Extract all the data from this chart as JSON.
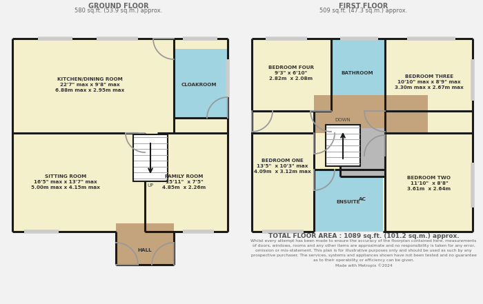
{
  "bg_color": "#f2f2f2",
  "wall_color": "#1a1a1a",
  "cream": "#f5f0cc",
  "blue": "#9fd4e0",
  "tan": "#c4a47c",
  "gray": "#b8b8b8",
  "ground_floor_title": "GROUND FLOOR",
  "ground_floor_subtitle": "580 sq.ft. (53.9 sq.m.) approx.",
  "first_floor_title": "FIRST FLOOR",
  "first_floor_subtitle": "509 sq.ft. (47.3 sq.m.) approx.",
  "total_area": "TOTAL FLOOR AREA : 1089 sq.ft. (101.2 sq.m.) approx.",
  "disclaimer": "Whilst every attempt has been made to ensure the accuracy of the floorplan contained here, measurements\nof doors, windows, rooms and any other items are approximate and no responsibility is taken for any error,\nomission or mis-statement. This plan is for illustrative purposes only and should be used as such by any\nprospective purchaser. The services, systems and appliances shown have not been tested and no guarantee\nas to their operability or efficiency can be given.\nMade with Metropix ©2024"
}
